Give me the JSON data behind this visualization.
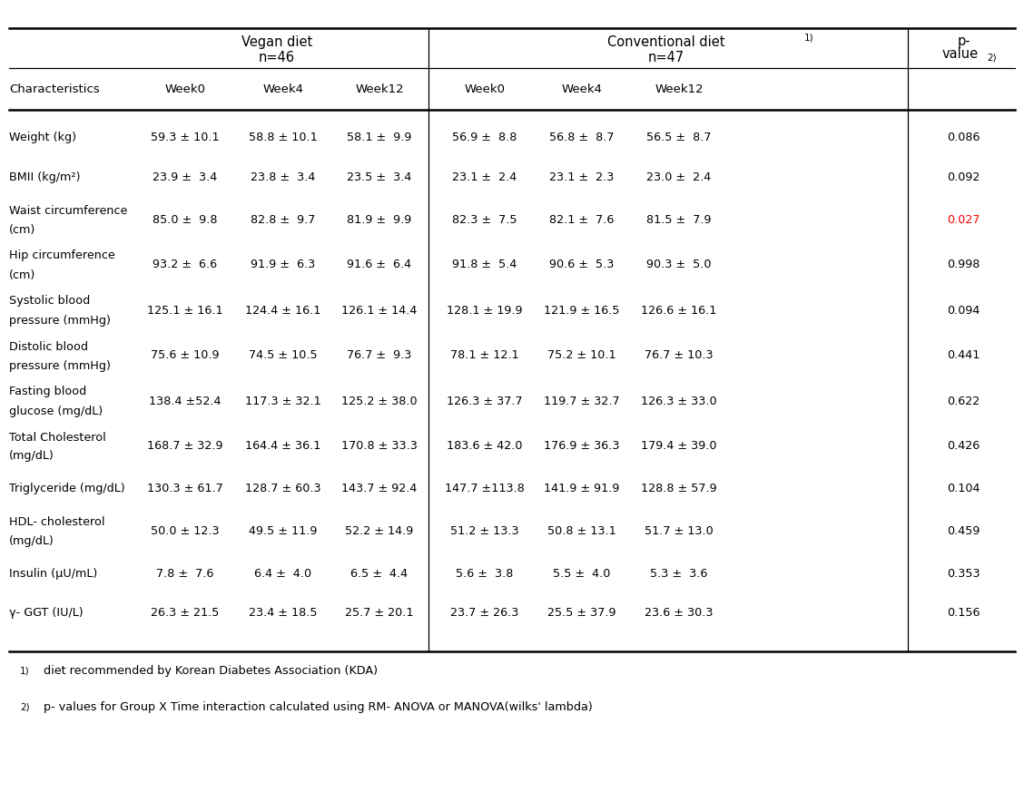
{
  "rows": [
    {
      "char": "Weight (kg)",
      "vegan": [
        "59.3 ± 10.1",
        "58.8 ± 10.1",
        "58.1 ±  9.9"
      ],
      "conv": [
        "56.9 ±  8.8",
        "56.8 ±  8.7",
        "56.5 ±  8.7"
      ],
      "pval": "0.086",
      "pval_color": "black",
      "multiline": false
    },
    {
      "char": "BMII (kg/m²)",
      "vegan": [
        "23.9 ±  3.4",
        "23.8 ±  3.4",
        "23.5 ±  3.4"
      ],
      "conv": [
        "23.1 ±  2.4",
        "23.1 ±  2.3",
        "23.0 ±  2.4"
      ],
      "pval": "0.092",
      "pval_color": "black",
      "multiline": false
    },
    {
      "char": "Waist circumference|(cm)",
      "vegan": [
        "85.0 ±  9.8",
        "82.8 ±  9.7",
        "81.9 ±  9.9"
      ],
      "conv": [
        "82.3 ±  7.5",
        "82.1 ±  7.6",
        "81.5 ±  7.9"
      ],
      "pval": "0.027",
      "pval_color": "red",
      "multiline": true
    },
    {
      "char": "Hip circumference|(cm)",
      "vegan": [
        "93.2 ±  6.6",
        "91.9 ±  6.3",
        "91.6 ±  6.4"
      ],
      "conv": [
        "91.8 ±  5.4",
        "90.6 ±  5.3",
        "90.3 ±  5.0"
      ],
      "pval": "0.998",
      "pval_color": "black",
      "multiline": true
    },
    {
      "char": "Systolic blood|pressure (mmHg)",
      "vegan": [
        "125.1 ± 16.1",
        "124.4 ± 16.1",
        "126.1 ± 14.4"
      ],
      "conv": [
        "128.1 ± 19.9",
        "121.9 ± 16.5",
        "126.6 ± 16.1"
      ],
      "pval": "0.094",
      "pval_color": "black",
      "multiline": true
    },
    {
      "char": "Distolic blood|pressure (mmHg)",
      "vegan": [
        "75.6 ± 10.9",
        "74.5 ± 10.5",
        "76.7 ±  9.3"
      ],
      "conv": [
        "78.1 ± 12.1",
        "75.2 ± 10.1",
        "76.7 ± 10.3"
      ],
      "pval": "0.441",
      "pval_color": "black",
      "multiline": true
    },
    {
      "char": "Fasting blood|glucose (mg/dL)",
      "vegan": [
        "138.4 ±52.4",
        "117.3 ± 32.1",
        "125.2 ± 38.0"
      ],
      "conv": [
        "126.3 ± 37.7",
        "119.7 ± 32.7",
        "126.3 ± 33.0"
      ],
      "pval": "0.622",
      "pval_color": "black",
      "multiline": true
    },
    {
      "char": "Total Cholesterol|(mg/dL)",
      "vegan": [
        "168.7 ± 32.9",
        "164.4 ± 36.1",
        "170.8 ± 33.3"
      ],
      "conv": [
        "183.6 ± 42.0",
        "176.9 ± 36.3",
        "179.4 ± 39.0"
      ],
      "pval": "0.426",
      "pval_color": "black",
      "multiline": true
    },
    {
      "char": "Triglyceride (mg/dL)",
      "vegan": [
        "130.3 ± 61.7",
        "128.7 ± 60.3",
        "143.7 ± 92.4"
      ],
      "conv": [
        "147.7 ±113.8",
        "141.9 ± 91.9",
        "128.8 ± 57.9"
      ],
      "pval": "0.104",
      "pval_color": "black",
      "multiline": false
    },
    {
      "char": "HDL- cholesterol|(mg/dL)",
      "vegan": [
        "50.0 ± 12.3",
        "49.5 ± 11.9",
        "52.2 ± 14.9"
      ],
      "conv": [
        "51.2 ± 13.3",
        "50.8 ± 13.1",
        "51.7 ± 13.0"
      ],
      "pval": "0.459",
      "pval_color": "black",
      "multiline": true
    },
    {
      "char": "Insulin (μU/mL)",
      "vegan": [
        "7.8 ±  7.6",
        "6.4 ±  4.0",
        "6.5 ±  4.4"
      ],
      "conv": [
        "5.6 ±  3.8",
        "5.5 ±  4.0",
        "5.3 ±  3.6"
      ],
      "pval": "0.353",
      "pval_color": "black",
      "multiline": false
    },
    {
      "char": "γ- GGT (IU/L)",
      "vegan": [
        "26.3 ± 21.5",
        "23.4 ± 18.5",
        "25.7 ± 20.1"
      ],
      "conv": [
        "23.7 ± 26.3",
        "25.5 ± 37.9",
        "23.6 ± 30.3"
      ],
      "pval": "0.156",
      "pval_color": "black",
      "multiline": false
    }
  ],
  "col_headers": [
    "Characteristics",
    "Week0",
    "Week4",
    "Week12",
    "Week0",
    "Week4",
    "Week12"
  ],
  "vegan_title": "Vegan diet",
  "vegan_n": "n=46",
  "conv_title": "Conventional diet",
  "conv_n": "n=47",
  "pval_header_line1": "p-",
  "pval_header_line2": "value",
  "footnote1": "diet recommended by Korean Diabetes Association (KDA)",
  "footnote2": "p- values for Group X Time interaction calculated using RM- ANOVA or MANOVA(wilks' lambda)"
}
